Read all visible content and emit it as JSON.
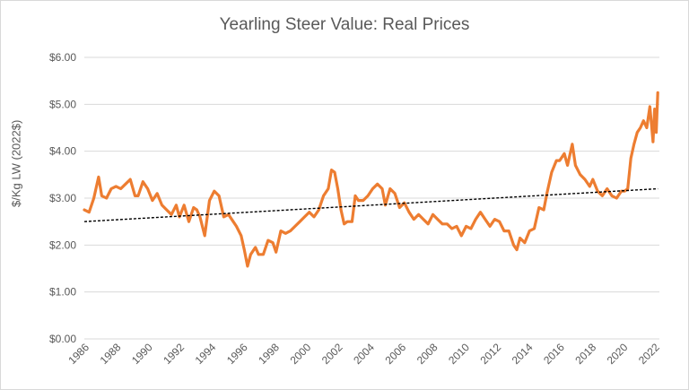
{
  "chart_data": {
    "type": "line",
    "title": "Yearling Steer Value: Real Prices",
    "xlabel": "",
    "ylabel": "$/Kg LW (2022$)",
    "xlim": [
      1986,
      2022.3
    ],
    "ylim": [
      0,
      6
    ],
    "y_ticks": [
      "$0.00",
      "$1.00",
      "$2.00",
      "$3.00",
      "$4.00",
      "$5.00",
      "$6.00"
    ],
    "x_ticks": [
      "1986",
      "1988",
      "1990",
      "1992",
      "1994",
      "1996",
      "1998",
      "2000",
      "2002",
      "2004",
      "2006",
      "2008",
      "2010",
      "2012",
      "2014",
      "2016",
      "2018",
      "2020",
      "2022"
    ],
    "grid": "horizontal",
    "legend": "none",
    "series": [
      {
        "color": "#ed7d31",
        "x": [
          1986.0,
          1986.3,
          1986.6,
          1986.9,
          1987.1,
          1987.4,
          1987.7,
          1988.0,
          1988.3,
          1988.6,
          1988.9,
          1989.2,
          1989.4,
          1989.7,
          1990.0,
          1990.3,
          1990.6,
          1990.9,
          1991.2,
          1991.5,
          1991.8,
          1992.0,
          1992.3,
          1992.6,
          1992.9,
          1993.1,
          1993.3,
          1993.6,
          1993.9,
          1994.2,
          1994.5,
          1994.8,
          1995.1,
          1995.4,
          1995.6,
          1995.9,
          1996.1,
          1996.3,
          1996.5,
          1996.8,
          1997.0,
          1997.3,
          1997.6,
          1997.9,
          1998.1,
          1998.4,
          1998.7,
          1999.0,
          1999.3,
          1999.6,
          1999.9,
          2000.2,
          2000.5,
          2000.8,
          2001.1,
          2001.4,
          2001.6,
          2001.8,
          2002.0,
          2002.2,
          2002.4,
          2002.6,
          2002.9,
          2003.1,
          2003.3,
          2003.6,
          2003.9,
          2004.2,
          2004.5,
          2004.8,
          2005.0,
          2005.3,
          2005.6,
          2005.9,
          2006.2,
          2006.5,
          2006.8,
          2007.1,
          2007.4,
          2007.7,
          2008.0,
          2008.3,
          2008.6,
          2008.9,
          2009.2,
          2009.5,
          2009.8,
          2010.1,
          2010.4,
          2010.7,
          2011.0,
          2011.3,
          2011.6,
          2011.9,
          2012.2,
          2012.5,
          2012.8,
          2013.1,
          2013.3,
          2013.5,
          2013.8,
          2014.1,
          2014.4,
          2014.7,
          2015.0,
          2015.2,
          2015.5,
          2015.8,
          2016.0,
          2016.3,
          2016.5,
          2016.8,
          2017.0,
          2017.3,
          2017.6,
          2017.9,
          2018.1,
          2018.4,
          2018.7,
          2019.0,
          2019.3,
          2019.6,
          2019.9,
          2020.1,
          2020.3,
          2020.5,
          2020.7,
          2020.9,
          2021.1,
          2021.3,
          2021.5,
          2021.7,
          2021.9,
          2022.0,
          2022.1,
          2022.2
        ],
        "values": [
          2.75,
          2.7,
          3.0,
          3.45,
          3.05,
          3.0,
          3.2,
          3.25,
          3.2,
          3.3,
          3.4,
          3.05,
          3.05,
          3.35,
          3.2,
          2.95,
          3.1,
          2.85,
          2.75,
          2.65,
          2.85,
          2.6,
          2.85,
          2.5,
          2.8,
          2.75,
          2.6,
          2.2,
          2.95,
          3.15,
          3.05,
          2.6,
          2.65,
          2.5,
          2.4,
          2.2,
          1.9,
          1.55,
          1.8,
          1.95,
          1.8,
          1.8,
          2.1,
          2.05,
          1.85,
          2.3,
          2.25,
          2.3,
          2.4,
          2.5,
          2.6,
          2.7,
          2.6,
          2.75,
          3.05,
          3.2,
          3.6,
          3.55,
          3.2,
          2.75,
          2.45,
          2.5,
          2.5,
          3.05,
          2.95,
          2.95,
          3.05,
          3.2,
          3.3,
          3.2,
          2.85,
          3.2,
          3.1,
          2.8,
          2.9,
          2.7,
          2.55,
          2.65,
          2.55,
          2.45,
          2.65,
          2.55,
          2.45,
          2.45,
          2.35,
          2.4,
          2.2,
          2.4,
          2.35,
          2.55,
          2.7,
          2.55,
          2.4,
          2.55,
          2.5,
          2.3,
          2.3,
          2.0,
          1.9,
          2.15,
          2.05,
          2.3,
          2.35,
          2.8,
          2.75,
          3.1,
          3.55,
          3.8,
          3.8,
          3.95,
          3.7,
          4.15,
          3.7,
          3.5,
          3.4,
          3.25,
          3.4,
          3.15,
          3.05,
          3.2,
          3.05,
          3.0,
          3.15,
          3.15,
          3.2,
          3.85,
          4.15,
          4.4,
          4.5,
          4.65,
          4.5,
          4.95,
          4.2,
          4.9,
          4.4,
          5.25
        ]
      }
    ],
    "trendline": {
      "style": "dashed",
      "color": "#000000",
      "x": [
        1986.0,
        2022.2
      ],
      "values": [
        2.5,
        3.2
      ]
    }
  }
}
